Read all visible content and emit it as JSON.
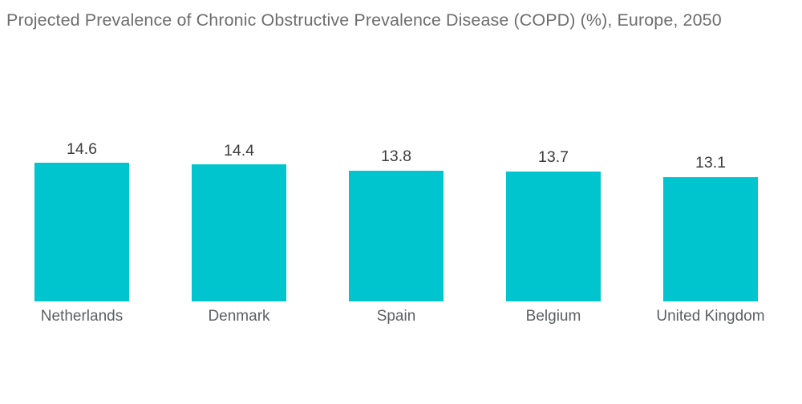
{
  "page": {
    "title": "Projected Prevalence of Chronic Obstructive Prevalence Disease (COPD) (%), Europe, 2050"
  },
  "chart_data": {
    "type": "bar",
    "title": "Projected Prevalence of Chronic Obstructive Prevalence Disease (COPD) (%), Europe, 2050",
    "categories": [
      "Netherlands",
      "Denmark",
      "Spain",
      "Belgium",
      "United Kingdom"
    ],
    "values": [
      14.6,
      14.4,
      13.8,
      13.7,
      13.1
    ],
    "value_labels": [
      "14.6",
      "14.4",
      "13.8",
      "13.7",
      "13.1"
    ],
    "xlabel": "",
    "ylabel": "",
    "ylim": [
      0,
      16
    ],
    "grid": false,
    "legend": false,
    "axes_visible": false,
    "data_label_position": "above-bars",
    "orientation": "vertical"
  },
  "colors": {
    "background": "#ffffff",
    "bar": "#00c5ce",
    "title_text": "#6e6e6e",
    "value_text": "#3c3c3c",
    "category_text": "#5c6063"
  }
}
